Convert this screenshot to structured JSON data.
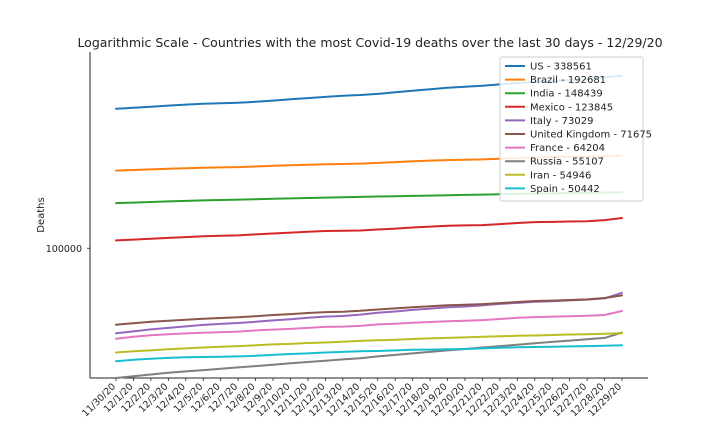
{
  "chart_data": {
    "type": "line",
    "title": "Logarithmic Scale - Countries with the most Covid-19 deaths over the last 30 days - 12/29/20",
    "xlabel": "",
    "ylabel": "Deaths",
    "yscale": "log",
    "ylim": [
      40000,
      400000
    ],
    "yticks": [
      100000
    ],
    "ytick_labels": [
      "100000"
    ],
    "grid": false,
    "legend_position": "top-right",
    "categories": [
      "11/30/20",
      "12/1/20",
      "12/2/20",
      "12/3/20",
      "12/4/20",
      "12/5/20",
      "12/6/20",
      "12/7/20",
      "12/8/20",
      "12/9/20",
      "12/10/20",
      "12/11/20",
      "12/12/20",
      "12/13/20",
      "12/14/20",
      "12/15/20",
      "12/16/20",
      "12/17/20",
      "12/18/20",
      "12/19/20",
      "12/20/20",
      "12/21/20",
      "12/22/20",
      "12/23/20",
      "12/24/20",
      "12/25/20",
      "12/26/20",
      "12/27/20",
      "12/28/20",
      "12/29/20"
    ],
    "series": [
      {
        "name": "US - 338561",
        "color": "#1f77b4",
        "values": [
          268000,
          269800,
          271800,
          273900,
          275800,
          277400,
          278500,
          279600,
          281400,
          283700,
          286300,
          288900,
          291300,
          293700,
          295200,
          297600,
          300900,
          304300,
          307600,
          310600,
          312900,
          315000,
          318100,
          321200,
          323900,
          325400,
          328000,
          330400,
          334300,
          338561
        ]
      },
      {
        "name": "Brazil - 192681",
        "color": "#ff7f0e",
        "values": [
          173100,
          173800,
          174500,
          175300,
          176100,
          176700,
          177000,
          177400,
          178200,
          179000,
          179800,
          180500,
          181100,
          181400,
          181800,
          182800,
          183800,
          184800,
          185700,
          186400,
          186800,
          187300,
          188300,
          189200,
          190000,
          190500,
          190800,
          191100,
          191600,
          192681
        ]
      },
      {
        "name": "India - 148439",
        "color": "#2ca02c",
        "values": [
          137600,
          138100,
          138700,
          139200,
          139700,
          140200,
          140600,
          141000,
          141400,
          141800,
          142200,
          142600,
          143000,
          143400,
          143700,
          144100,
          144500,
          144800,
          145100,
          145500,
          145800,
          146100,
          146400,
          146800,
          147100,
          147300,
          147600,
          147900,
          148200,
          148439
        ]
      },
      {
        "name": "Mexico - 123845",
        "color": "#d62728",
        "values": [
          105700,
          106300,
          107000,
          107600,
          108200,
          108900,
          109200,
          109500,
          110300,
          111000,
          111700,
          112300,
          113000,
          113100,
          113400,
          114200,
          114900,
          115800,
          116500,
          117200,
          117500,
          117800,
          118600,
          119500,
          120300,
          120500,
          120800,
          121100,
          122000,
          123845
        ]
      },
      {
        "name": "Italy - 73029",
        "color": "#9467bd",
        "values": [
          54900,
          55600,
          56400,
          57000,
          57600,
          58200,
          58600,
          59000,
          59500,
          60100,
          60600,
          61200,
          61700,
          62000,
          62600,
          63400,
          64000,
          64700,
          65300,
          65900,
          66300,
          66800,
          67500,
          68000,
          68500,
          68800,
          69200,
          69600,
          70200,
          73029
        ]
      },
      {
        "name": "United Kingdom - 71675",
        "color": "#8c564b",
        "values": [
          58300,
          58900,
          59500,
          59900,
          60400,
          60800,
          61100,
          61400,
          61900,
          62400,
          62800,
          63300,
          63700,
          63900,
          64300,
          64900,
          65400,
          65900,
          66400,
          66900,
          67100,
          67400,
          67900,
          68400,
          68900,
          69100,
          69400,
          69700,
          70400,
          71675
        ]
      },
      {
        "name": "France - 64204",
        "color": "#e377c2",
        "values": [
          52800,
          53500,
          54100,
          54500,
          54800,
          55100,
          55300,
          55500,
          56000,
          56300,
          56600,
          57000,
          57400,
          57500,
          57800,
          58400,
          58700,
          59100,
          59400,
          59700,
          59900,
          60200,
          60700,
          61200,
          61500,
          61700,
          61900,
          62100,
          62400,
          64204
        ]
      },
      {
        "name": "Russia - 55107",
        "color": "#7f7f7f",
        "values": [
          40000,
          40500,
          41000,
          41500,
          41900,
          42300,
          42700,
          43100,
          43500,
          43900,
          44400,
          44800,
          45200,
          45600,
          46000,
          46600,
          47100,
          47600,
          48100,
          48600,
          49100,
          49600,
          50100,
          50600,
          51100,
          51600,
          52100,
          52600,
          53100,
          55107
        ]
      },
      {
        "name": "Iran - 54946",
        "color": "#bcbd22",
        "values": [
          47900,
          48300,
          48600,
          49000,
          49300,
          49600,
          49900,
          50100,
          50400,
          50700,
          50900,
          51200,
          51400,
          51700,
          52000,
          52200,
          52400,
          52700,
          52900,
          53100,
          53300,
          53500,
          53700,
          53900,
          54000,
          54200,
          54400,
          54500,
          54700,
          54946
        ]
      },
      {
        "name": "Spain - 50442",
        "color": "#17becf",
        "values": [
          45000,
          45500,
          45800,
          46100,
          46300,
          46400,
          46500,
          46600,
          46800,
          47100,
          47400,
          47600,
          47900,
          48100,
          48300,
          48400,
          48600,
          48800,
          48900,
          49000,
          49100,
          49300,
          49500,
          49700,
          49800,
          49900,
          50000,
          50100,
          50200,
          50442
        ]
      }
    ]
  }
}
